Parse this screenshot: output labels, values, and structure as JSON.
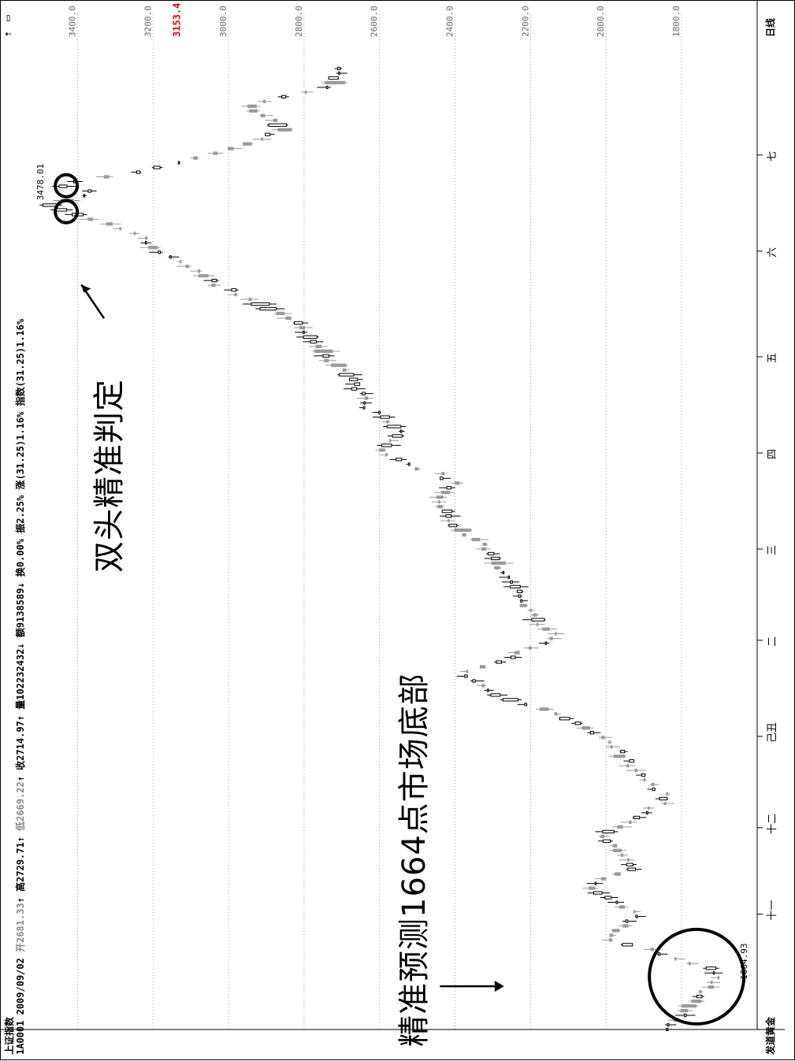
{
  "header": {
    "title": "上证指数",
    "code": "1A0001",
    "date": "2009/09/02",
    "open_label": "开",
    "open": "2681.33",
    "high_label": "高",
    "high": "2729.71",
    "low_label": "低",
    "low": "2669.22",
    "close_label": "收",
    "close": "2714.97",
    "volume_label": "量",
    "volume": "102232432",
    "amount_label": "额",
    "amount": "9138589",
    "turnover_label": "换",
    "turnover": "0.00%",
    "amplitude_label": "振",
    "amplitude": "2.25%",
    "change_label": "涨",
    "change": "(31.25)1.16%",
    "index_text": "指数(31.25)1.16%",
    "tool_icons": [
      "up-arrow-icon",
      "window-icon"
    ]
  },
  "bottom_left": "发道黄金",
  "bottom_right": "日线",
  "current_price": "3153.4",
  "annotations": {
    "top": "双头精准判定",
    "bottom": "精准预测1664点市场底部"
  },
  "colors": {
    "up": "#000000",
    "down": "#9a9a9a",
    "price_marker": "#e00000",
    "grid": "#888888"
  },
  "chart_data": {
    "type": "candlestick",
    "title": "上证指数",
    "period": "日线",
    "ylim": [
      1664,
      3478
    ],
    "y_ticks": [
      "1800.0",
      "2000.0",
      "2200.0",
      "2400.0",
      "2600.0",
      "2800.0",
      "3000.0",
      "3200.0",
      "3400.0"
    ],
    "x_month_labels": [
      "十一",
      "十二",
      "己丑",
      "二",
      "三",
      "四",
      "五",
      "六",
      "七"
    ],
    "max_label": "3478.01",
    "min_label": "1664.93",
    "last_price": "3153.4",
    "grid": true,
    "path_keypoints": [
      {
        "x": 0.0,
        "y": 1850
      },
      {
        "x": 0.03,
        "y": 1760
      },
      {
        "x": 0.06,
        "y": 1700
      },
      {
        "x": 0.095,
        "y": 2000
      },
      {
        "x": 0.12,
        "y": 1920
      },
      {
        "x": 0.15,
        "y": 2040
      },
      {
        "x": 0.17,
        "y": 1930
      },
      {
        "x": 0.2,
        "y": 2010
      },
      {
        "x": 0.24,
        "y": 1840
      },
      {
        "x": 0.27,
        "y": 1920
      },
      {
        "x": 0.31,
        "y": 2030
      },
      {
        "x": 0.33,
        "y": 2150
      },
      {
        "x": 0.35,
        "y": 2300
      },
      {
        "x": 0.37,
        "y": 2380
      },
      {
        "x": 0.39,
        "y": 2230
      },
      {
        "x": 0.41,
        "y": 2140
      },
      {
        "x": 0.44,
        "y": 2220
      },
      {
        "x": 0.47,
        "y": 2250
      },
      {
        "x": 0.5,
        "y": 2320
      },
      {
        "x": 0.525,
        "y": 2400
      },
      {
        "x": 0.55,
        "y": 2440
      },
      {
        "x": 0.57,
        "y": 2400
      },
      {
        "x": 0.6,
        "y": 2600
      },
      {
        "x": 0.62,
        "y": 2540
      },
      {
        "x": 0.65,
        "y": 2630
      },
      {
        "x": 0.68,
        "y": 2680
      },
      {
        "x": 0.71,
        "y": 2760
      },
      {
        "x": 0.74,
        "y": 2840
      },
      {
        "x": 0.77,
        "y": 3000
      },
      {
        "x": 0.8,
        "y": 3140
      },
      {
        "x": 0.83,
        "y": 3250
      },
      {
        "x": 0.85,
        "y": 3420
      },
      {
        "x": 0.858,
        "y": 3478
      },
      {
        "x": 0.872,
        "y": 3350
      },
      {
        "x": 0.88,
        "y": 3460
      },
      {
        "x": 0.892,
        "y": 3240
      },
      {
        "x": 0.91,
        "y": 3050
      },
      {
        "x": 0.935,
        "y": 2850
      },
      {
        "x": 0.96,
        "y": 2950
      },
      {
        "x": 0.985,
        "y": 2720
      },
      {
        "x": 1.0,
        "y": 2714
      }
    ]
  }
}
